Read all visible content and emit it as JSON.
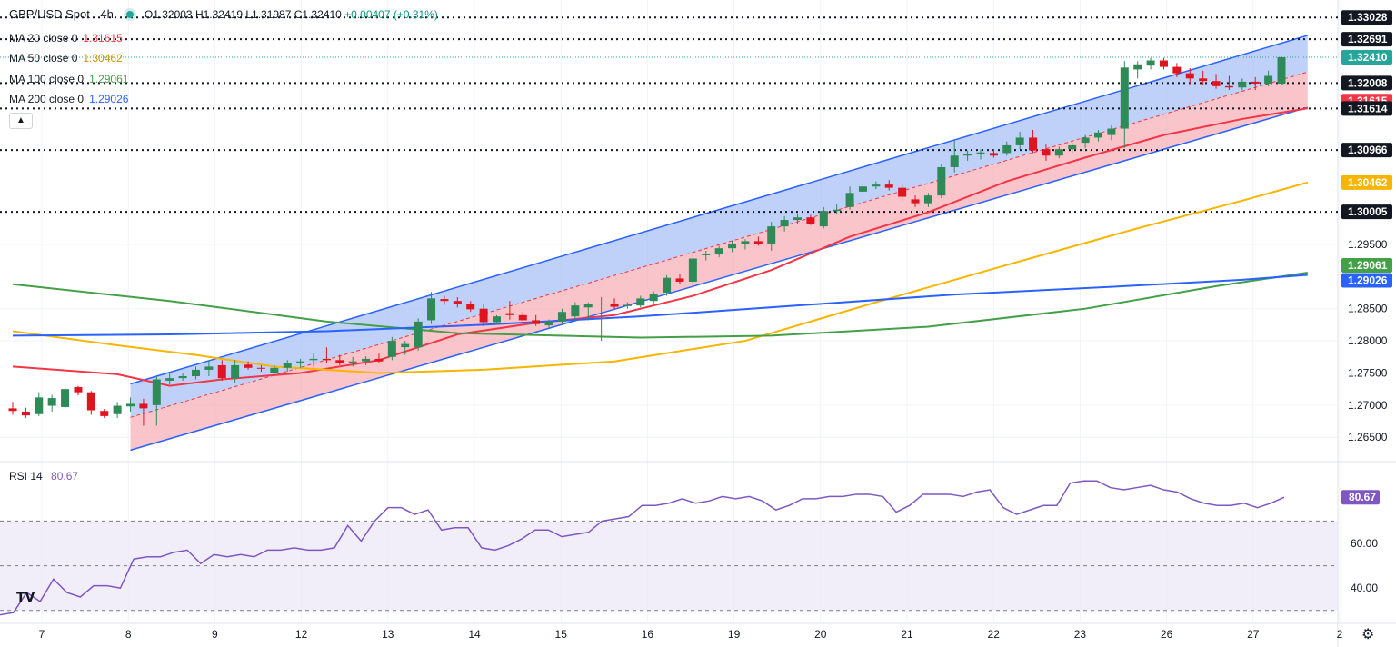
{
  "header": {
    "symbol": "GBP/USD Spot · 4h",
    "ohlc_o": "O1.32003",
    "ohlc_h": "H1.32419",
    "ohlc_l": "L1.31987",
    "ohlc_c": "C1.32410",
    "change": "+0.00407 (+0.31%)"
  },
  "legend": [
    {
      "label": "MA 20 close 0",
      "value": "1.31615",
      "color": "#f23645"
    },
    {
      "label": "MA 50 close 0",
      "value": "1.30462",
      "color": "#f7b500"
    },
    {
      "label": "MA 100 close 0",
      "value": "1.29061",
      "color": "#43a047"
    },
    {
      "label": "MA 200 close 0",
      "value": "1.29026",
      "color": "#2962ff"
    }
  ],
  "collapse_icon": "chevron-up-icon",
  "rsi": {
    "label": "RSI 14",
    "value": "80.67",
    "color": "#7e57c2"
  },
  "colors": {
    "up": "#26a69a",
    "up_body": "#2e8b57",
    "down": "#e0141e",
    "channel_up": "#2962ff",
    "channel_fill_top": "#a9c2f7",
    "channel_fill_bottom": "#f7b2b8",
    "rsi_band": "#ede7f6"
  },
  "chart_data": [
    {
      "type": "candlestick",
      "title": "GBP/USD Spot · 4h",
      "x_tick_labels": [
        "7",
        "8",
        "9",
        "12",
        "13",
        "14",
        "15",
        "16",
        "19",
        "20",
        "21",
        "22",
        "23",
        "26",
        "27",
        "2"
      ],
      "y_tick_labels": [
        "1.26500",
        "1.27000",
        "1.27500",
        "1.28000",
        "1.28500",
        "1.29500"
      ],
      "ylim": [
        1.2615,
        1.333
      ],
      "price_labels": [
        {
          "value": "1.33028",
          "kind": "level"
        },
        {
          "value": "1.32691",
          "kind": "level"
        },
        {
          "value": "1.32410",
          "kind": "last",
          "color": "#26a69a"
        },
        {
          "value": "1.32008",
          "kind": "level"
        },
        {
          "value": "1.31615",
          "kind": "ma20",
          "color": "#f23645"
        },
        {
          "value": "1.31614",
          "kind": "level"
        },
        {
          "value": "1.30966",
          "kind": "level"
        },
        {
          "value": "1.30462",
          "kind": "ma50",
          "color": "#f7b500"
        },
        {
          "value": "1.30005",
          "kind": "level"
        },
        {
          "value": "1.29061",
          "kind": "ma100",
          "color": "#43a047"
        },
        {
          "value": "1.29026",
          "kind": "ma200",
          "color": "#2962ff"
        }
      ],
      "horizontal_levels": [
        1.33028,
        1.32691,
        1.32008,
        1.31614,
        1.30966,
        1.30005
      ],
      "candles": [
        {
          "o": 1.2695,
          "h": 1.2705,
          "l": 1.2685,
          "c": 1.2691
        },
        {
          "o": 1.269,
          "h": 1.2696,
          "l": 1.268,
          "c": 1.2684
        },
        {
          "o": 1.2686,
          "h": 1.272,
          "l": 1.2683,
          "c": 1.2712
        },
        {
          "o": 1.2699,
          "h": 1.2716,
          "l": 1.269,
          "c": 1.2711
        },
        {
          "o": 1.2697,
          "h": 1.2735,
          "l": 1.2695,
          "c": 1.2725
        },
        {
          "o": 1.2728,
          "h": 1.273,
          "l": 1.2715,
          "c": 1.272
        },
        {
          "o": 1.272,
          "h": 1.2722,
          "l": 1.2685,
          "c": 1.2692
        },
        {
          "o": 1.2691,
          "h": 1.2694,
          "l": 1.268,
          "c": 1.2683
        },
        {
          "o": 1.2686,
          "h": 1.2705,
          "l": 1.268,
          "c": 1.2699
        },
        {
          "o": 1.2698,
          "h": 1.2712,
          "l": 1.269,
          "c": 1.2702
        },
        {
          "o": 1.2702,
          "h": 1.271,
          "l": 1.2668,
          "c": 1.2695
        },
        {
          "o": 1.27,
          "h": 1.2745,
          "l": 1.2668,
          "c": 1.274
        },
        {
          "o": 1.2738,
          "h": 1.275,
          "l": 1.2732,
          "c": 1.2742
        },
        {
          "o": 1.2742,
          "h": 1.275,
          "l": 1.2738,
          "c": 1.2745
        },
        {
          "o": 1.2745,
          "h": 1.276,
          "l": 1.274,
          "c": 1.2755
        },
        {
          "o": 1.2755,
          "h": 1.277,
          "l": 1.2745,
          "c": 1.276
        },
        {
          "o": 1.2762,
          "h": 1.277,
          "l": 1.2738,
          "c": 1.2742
        },
        {
          "o": 1.2742,
          "h": 1.277,
          "l": 1.2735,
          "c": 1.2762
        },
        {
          "o": 1.2763,
          "h": 1.2768,
          "l": 1.2755,
          "c": 1.2758
        },
        {
          "o": 1.2758,
          "h": 1.2762,
          "l": 1.2752,
          "c": 1.2757
        },
        {
          "o": 1.275,
          "h": 1.2762,
          "l": 1.2748,
          "c": 1.2758
        },
        {
          "o": 1.2758,
          "h": 1.277,
          "l": 1.2752,
          "c": 1.2765
        },
        {
          "o": 1.2765,
          "h": 1.2772,
          "l": 1.2758,
          "c": 1.2768
        },
        {
          "o": 1.277,
          "h": 1.278,
          "l": 1.276,
          "c": 1.2772
        },
        {
          "o": 1.2772,
          "h": 1.279,
          "l": 1.2765,
          "c": 1.277
        },
        {
          "o": 1.277,
          "h": 1.2778,
          "l": 1.2762,
          "c": 1.2766
        },
        {
          "o": 1.2766,
          "h": 1.2775,
          "l": 1.276,
          "c": 1.2768
        },
        {
          "o": 1.2768,
          "h": 1.2776,
          "l": 1.2762,
          "c": 1.2772
        },
        {
          "o": 1.2772,
          "h": 1.278,
          "l": 1.2765,
          "c": 1.2768
        },
        {
          "o": 1.2775,
          "h": 1.2806,
          "l": 1.277,
          "c": 1.28
        },
        {
          "o": 1.279,
          "h": 1.28,
          "l": 1.2778,
          "c": 1.2795
        },
        {
          "o": 1.279,
          "h": 1.2835,
          "l": 1.2785,
          "c": 1.283
        },
        {
          "o": 1.2832,
          "h": 1.2876,
          "l": 1.2826,
          "c": 1.2866
        },
        {
          "o": 1.2865,
          "h": 1.287,
          "l": 1.2856,
          "c": 1.2862
        },
        {
          "o": 1.2862,
          "h": 1.2868,
          "l": 1.2852,
          "c": 1.2858
        },
        {
          "o": 1.2857,
          "h": 1.2862,
          "l": 1.2845,
          "c": 1.2849
        },
        {
          "o": 1.285,
          "h": 1.2858,
          "l": 1.2823,
          "c": 1.2829
        },
        {
          "o": 1.2829,
          "h": 1.284,
          "l": 1.2826,
          "c": 1.2838
        },
        {
          "o": 1.2843,
          "h": 1.2862,
          "l": 1.2833,
          "c": 1.284
        },
        {
          "o": 1.284,
          "h": 1.2845,
          "l": 1.2828,
          "c": 1.2832
        },
        {
          "o": 1.2832,
          "h": 1.284,
          "l": 1.2823,
          "c": 1.2826
        },
        {
          "o": 1.2824,
          "h": 1.2833,
          "l": 1.282,
          "c": 1.283
        },
        {
          "o": 1.283,
          "h": 1.285,
          "l": 1.2827,
          "c": 1.2845
        },
        {
          "o": 1.2838,
          "h": 1.286,
          "l": 1.283,
          "c": 1.2855
        },
        {
          "o": 1.2852,
          "h": 1.286,
          "l": 1.2832,
          "c": 1.2857
        },
        {
          "o": 1.2857,
          "h": 1.2868,
          "l": 1.28,
          "c": 1.2858
        },
        {
          "o": 1.2858,
          "h": 1.2866,
          "l": 1.285,
          "c": 1.2853
        },
        {
          "o": 1.2854,
          "h": 1.286,
          "l": 1.285,
          "c": 1.2856
        },
        {
          "o": 1.2855,
          "h": 1.287,
          "l": 1.2852,
          "c": 1.2866
        },
        {
          "o": 1.2862,
          "h": 1.2877,
          "l": 1.2858,
          "c": 1.2873
        },
        {
          "o": 1.2875,
          "h": 1.2902,
          "l": 1.287,
          "c": 1.2898
        },
        {
          "o": 1.2897,
          "h": 1.2904,
          "l": 1.2888,
          "c": 1.2892
        },
        {
          "o": 1.2892,
          "h": 1.2935,
          "l": 1.2886,
          "c": 1.2928
        },
        {
          "o": 1.2933,
          "h": 1.294,
          "l": 1.2925,
          "c": 1.2935
        },
        {
          "o": 1.2935,
          "h": 1.2948,
          "l": 1.293,
          "c": 1.2944
        },
        {
          "o": 1.2944,
          "h": 1.2956,
          "l": 1.2938,
          "c": 1.295
        },
        {
          "o": 1.295,
          "h": 1.2958,
          "l": 1.2942,
          "c": 1.2955
        },
        {
          "o": 1.2955,
          "h": 1.2962,
          "l": 1.2948,
          "c": 1.295
        },
        {
          "o": 1.295,
          "h": 1.2985,
          "l": 1.294,
          "c": 1.2978
        },
        {
          "o": 1.2978,
          "h": 1.2994,
          "l": 1.297,
          "c": 1.2988
        },
        {
          "o": 1.2988,
          "h": 1.2998,
          "l": 1.2982,
          "c": 1.2992
        },
        {
          "o": 1.2992,
          "h": 1.2996,
          "l": 1.298,
          "c": 1.2982
        },
        {
          "o": 1.2978,
          "h": 1.3008,
          "l": 1.2975,
          "c": 1.3002
        },
        {
          "o": 1.3002,
          "h": 1.3012,
          "l": 1.2998,
          "c": 1.3004
        },
        {
          "o": 1.3008,
          "h": 1.304,
          "l": 1.3004,
          "c": 1.303
        },
        {
          "o": 1.3032,
          "h": 1.3045,
          "l": 1.3028,
          "c": 1.304
        },
        {
          "o": 1.304,
          "h": 1.3048,
          "l": 1.3036,
          "c": 1.3043
        },
        {
          "o": 1.3043,
          "h": 1.305,
          "l": 1.3034,
          "c": 1.3038
        },
        {
          "o": 1.3038,
          "h": 1.3045,
          "l": 1.3018,
          "c": 1.3024
        },
        {
          "o": 1.302,
          "h": 1.3026,
          "l": 1.3008,
          "c": 1.3014
        },
        {
          "o": 1.3014,
          "h": 1.303,
          "l": 1.3008,
          "c": 1.3026
        },
        {
          "o": 1.3026,
          "h": 1.3075,
          "l": 1.3022,
          "c": 1.307
        },
        {
          "o": 1.307,
          "h": 1.3112,
          "l": 1.3062,
          "c": 1.3088
        },
        {
          "o": 1.3088,
          "h": 1.3096,
          "l": 1.308,
          "c": 1.309
        },
        {
          "o": 1.309,
          "h": 1.3098,
          "l": 1.3082,
          "c": 1.3093
        },
        {
          "o": 1.3092,
          "h": 1.3098,
          "l": 1.3085,
          "c": 1.3088
        },
        {
          "o": 1.3092,
          "h": 1.311,
          "l": 1.3088,
          "c": 1.3104
        },
        {
          "o": 1.3104,
          "h": 1.3125,
          "l": 1.3098,
          "c": 1.3116
        },
        {
          "o": 1.3116,
          "h": 1.3128,
          "l": 1.3092,
          "c": 1.3096
        },
        {
          "o": 1.3098,
          "h": 1.3105,
          "l": 1.308,
          "c": 1.3088
        },
        {
          "o": 1.3088,
          "h": 1.3102,
          "l": 1.3084,
          "c": 1.3098
        },
        {
          "o": 1.3098,
          "h": 1.3108,
          "l": 1.3092,
          "c": 1.3104
        },
        {
          "o": 1.3108,
          "h": 1.312,
          "l": 1.31,
          "c": 1.3116
        },
        {
          "o": 1.3116,
          "h": 1.3128,
          "l": 1.311,
          "c": 1.3124
        },
        {
          "o": 1.312,
          "h": 1.3135,
          "l": 1.3112,
          "c": 1.313
        },
        {
          "o": 1.313,
          "h": 1.3235,
          "l": 1.31,
          "c": 1.3225
        },
        {
          "o": 1.3222,
          "h": 1.3235,
          "l": 1.3208,
          "c": 1.323
        },
        {
          "o": 1.3228,
          "h": 1.324,
          "l": 1.3222,
          "c": 1.3236
        },
        {
          "o": 1.3236,
          "h": 1.324,
          "l": 1.3222,
          "c": 1.3226
        },
        {
          "o": 1.3226,
          "h": 1.3232,
          "l": 1.321,
          "c": 1.3216
        },
        {
          "o": 1.3216,
          "h": 1.3224,
          "l": 1.32,
          "c": 1.3208
        },
        {
          "o": 1.3208,
          "h": 1.322,
          "l": 1.3198,
          "c": 1.3204
        },
        {
          "o": 1.3204,
          "h": 1.3215,
          "l": 1.3192,
          "c": 1.3196
        },
        {
          "o": 1.3196,
          "h": 1.3212,
          "l": 1.319,
          "c": 1.3194
        },
        {
          "o": 1.3194,
          "h": 1.3208,
          "l": 1.319,
          "c": 1.3203
        },
        {
          "o": 1.3203,
          "h": 1.321,
          "l": 1.319,
          "c": 1.32
        },
        {
          "o": 1.32,
          "h": 1.322,
          "l": 1.3196,
          "c": 1.3212
        },
        {
          "o": 1.32,
          "h": 1.3242,
          "l": 1.3199,
          "c": 1.3241
        }
      ],
      "moving_averages": [
        {
          "name": "MA 20 close 0",
          "color": "#f23645",
          "points": [
            [
              0,
              1.276
            ],
            [
              8,
              1.2748
            ],
            [
              12,
              1.273
            ],
            [
              16,
              1.274
            ],
            [
              22,
              1.275
            ],
            [
              28,
              1.277
            ],
            [
              34,
              1.281
            ],
            [
              40,
              1.2828
            ],
            [
              46,
              1.284
            ],
            [
              52,
              1.287
            ],
            [
              58,
              1.291
            ],
            [
              64,
              1.2962
            ],
            [
              70,
              1.3
            ],
            [
              76,
              1.3048
            ],
            [
              82,
              1.3085
            ],
            [
              88,
              1.312
            ],
            [
              94,
              1.3145
            ],
            [
              99,
              1.31615
            ]
          ]
        },
        {
          "name": "MA 50 close 0",
          "color": "#f7b500",
          "points": [
            [
              0,
              1.2815
            ],
            [
              8,
              1.2793
            ],
            [
              14,
              1.2778
            ],
            [
              20,
              1.276
            ],
            [
              28,
              1.275
            ],
            [
              36,
              1.2755
            ],
            [
              46,
              1.2768
            ],
            [
              56,
              1.28
            ],
            [
              66,
              1.286
            ],
            [
              76,
              1.2918
            ],
            [
              86,
              1.2975
            ],
            [
              94,
              1.3018
            ],
            [
              99,
              1.30462
            ]
          ]
        },
        {
          "name": "MA 100 close 0",
          "color": "#43a047",
          "points": [
            [
              0,
              1.2888
            ],
            [
              12,
              1.2862
            ],
            [
              24,
              1.283
            ],
            [
              34,
              1.2812
            ],
            [
              48,
              1.2805
            ],
            [
              58,
              1.2808
            ],
            [
              70,
              1.2822
            ],
            [
              82,
              1.285
            ],
            [
              92,
              1.2885
            ],
            [
              99,
              1.29061
            ]
          ]
        },
        {
          "name": "MA 200 close 0",
          "color": "#2962ff",
          "points": [
            [
              0,
              1.2808
            ],
            [
              12,
              1.281
            ],
            [
              24,
              1.2815
            ],
            [
              36,
              1.2825
            ],
            [
              48,
              1.2838
            ],
            [
              60,
              1.2855
            ],
            [
              72,
              1.2872
            ],
            [
              84,
              1.2884
            ],
            [
              94,
              1.2895
            ],
            [
              99,
              1.29026
            ]
          ]
        }
      ],
      "regression_channel": {
        "start_index": 9,
        "end_index": 99,
        "upper": [
          1.2733,
          1.3275
        ],
        "middle": [
          1.2681,
          1.3218
        ],
        "lower": [
          1.263,
          1.3163
        ]
      }
    },
    {
      "type": "line",
      "title": "RSI 14",
      "y_tick_labels": [
        "40.00",
        "60.00"
      ],
      "ylim": [
        25,
        95
      ],
      "bands": [
        30,
        50,
        70
      ],
      "last_value": "80.67",
      "values": [
        28,
        29,
        38,
        34,
        44,
        38,
        36,
        41,
        41,
        40,
        53,
        54,
        54,
        56,
        57,
        51,
        55,
        54,
        55,
        54,
        57,
        57,
        58,
        57,
        57,
        58,
        68,
        61,
        70,
        76,
        76,
        73,
        75,
        66,
        67,
        67,
        58,
        57,
        59,
        62,
        66,
        66,
        63,
        64,
        65,
        70,
        71,
        72,
        77,
        77,
        78,
        80,
        78,
        79,
        81,
        80,
        81,
        79,
        75,
        77,
        80,
        80,
        81,
        81,
        82,
        82,
        81,
        74,
        77,
        82,
        82,
        82,
        81,
        83,
        84,
        76,
        73,
        75,
        77,
        77,
        87,
        88,
        88,
        85,
        84,
        85,
        86,
        84,
        83,
        80,
        78,
        77,
        77,
        78,
        76,
        78,
        80.67
      ]
    }
  ]
}
